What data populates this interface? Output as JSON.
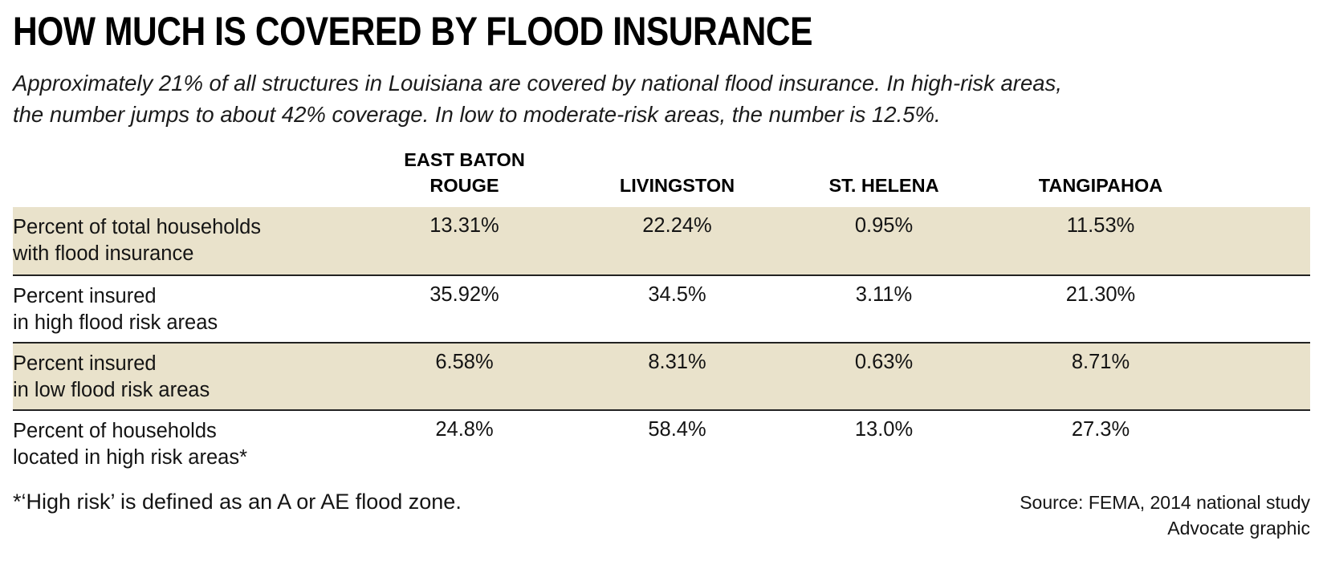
{
  "title": "HOW MUCH IS COVERED BY FLOOD INSURANCE",
  "subtitle": "Approximately 21% of all structures in Louisiana are covered by national flood insurance. In high-risk areas,\nthe number jumps to about 42% coverage. In low to moderate-risk areas, the number is 12.5%.",
  "table": {
    "columns": [
      "EAST BATON\nROUGE",
      "LIVINGSTON",
      "ST. HELENA",
      "TANGIPAHOA"
    ],
    "rows": [
      {
        "label": "Percent of total households\nwith flood insurance",
        "values": [
          "13.31%",
          "22.24%",
          "0.95%",
          "11.53%"
        ]
      },
      {
        "label": "Percent insured\nin high flood risk areas",
        "values": [
          "35.92%",
          "34.5%",
          "3.11%",
          "21.30%"
        ]
      },
      {
        "label": "Percent insured\nin low flood risk areas",
        "values": [
          "6.58%",
          "8.31%",
          "0.63%",
          "8.71%"
        ]
      },
      {
        "label": "Percent of households\nlocated in high risk areas*",
        "values": [
          "24.8%",
          "58.4%",
          "13.0%",
          "27.3%"
        ]
      }
    ]
  },
  "footnote": "*‘High risk’ is defined as an A or AE flood zone.",
  "source": "Source: FEMA, 2014 national study\nAdvocate graphic",
  "colors": {
    "row_highlight": "#e9e2cb",
    "rule_line": "#222222",
    "text": "#111111"
  },
  "chart_data": {
    "type": "table",
    "title": "HOW MUCH IS COVERED BY FLOOD INSURANCE",
    "categories": [
      "East Baton Rouge",
      "Livingston",
      "St. Helena",
      "Tangipahoa"
    ],
    "series": [
      {
        "name": "Percent of total households with flood insurance",
        "values": [
          13.31,
          22.24,
          0.95,
          11.53
        ]
      },
      {
        "name": "Percent insured in high flood risk areas",
        "values": [
          35.92,
          34.5,
          3.11,
          21.3
        ]
      },
      {
        "name": "Percent insured in low flood risk areas",
        "values": [
          6.58,
          8.31,
          0.63,
          8.71
        ]
      },
      {
        "name": "Percent of households located in high risk areas*",
        "values": [
          24.8,
          58.4,
          13.0,
          27.3
        ]
      }
    ],
    "unit": "%",
    "notes": "‘High risk’ is defined as an A or AE flood zone.",
    "source": "FEMA, 2014 national study"
  }
}
